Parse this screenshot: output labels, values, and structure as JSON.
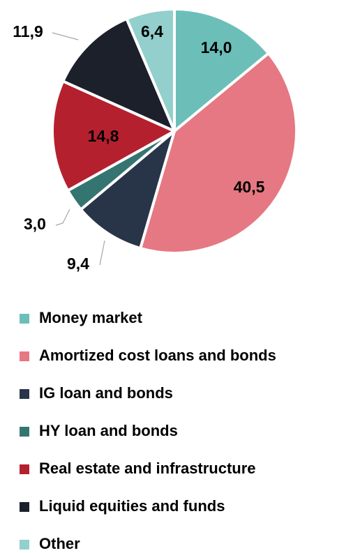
{
  "chart_data": {
    "type": "pie",
    "categories": [
      "Money market",
      "Amortized cost loans and bonds",
      "IG loan and bonds",
      "HY loan and bonds",
      "Real estate and infrastructure",
      "Liquid equities and funds",
      "Other"
    ],
    "values": [
      14.0,
      40.5,
      9.4,
      3.0,
      14.8,
      11.9,
      6.4
    ],
    "value_labels": [
      "14,0",
      "40,5",
      "9,4",
      "3,0",
      "14,8",
      "11,9",
      "6,4"
    ],
    "colors": [
      "#6cbfb9",
      "#e57882",
      "#283548",
      "#357571",
      "#b5202f",
      "#1b202b",
      "#93cfcc"
    ]
  }
}
